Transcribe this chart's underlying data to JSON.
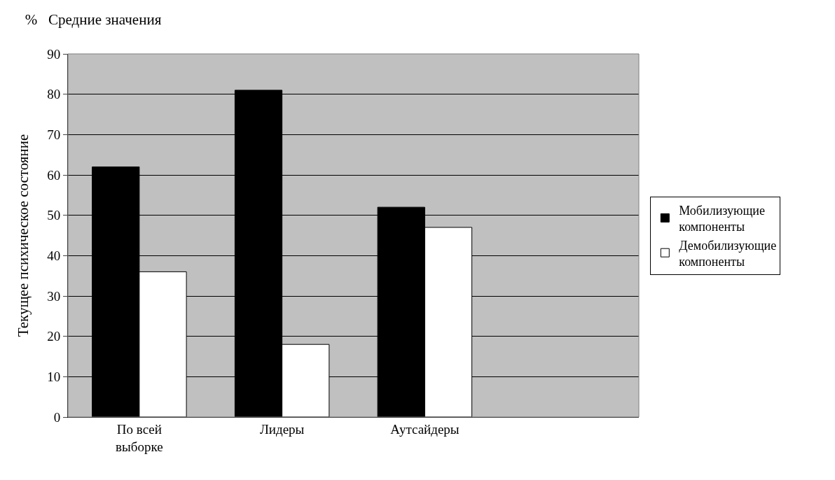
{
  "chart_data": {
    "type": "bar",
    "title": "%   Средние значения",
    "ylabel": "Текущее психическое состояние",
    "categories": [
      "По всей выборке",
      "Лидеры",
      "Аутсайдеры",
      null
    ],
    "series": [
      {
        "name": "Мобилизующие компоненты",
        "color": "#000000",
        "values": [
          62,
          81,
          52,
          null
        ]
      },
      {
        "name": "Демобилизующие компоненты",
        "color": "#ffffff",
        "values": [
          36,
          18,
          47,
          null
        ]
      }
    ],
    "ylim": [
      0,
      90
    ],
    "yticks": [
      0,
      10,
      20,
      30,
      40,
      50,
      60,
      70,
      80,
      90
    ],
    "grid": "y",
    "legend": "right"
  }
}
